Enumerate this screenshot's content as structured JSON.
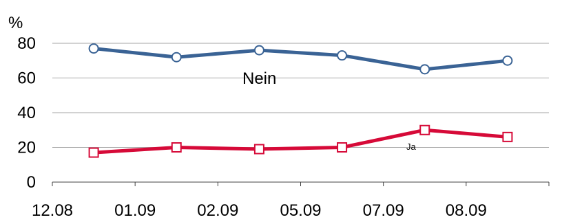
{
  "chart_data": {
    "type": "line",
    "unit_label": "%",
    "categories": [
      "12.08",
      "01.09",
      "02.09",
      "05.09",
      "07.09",
      "08.09"
    ],
    "series": [
      {
        "name": "Nein",
        "values": [
          77,
          72,
          76,
          73,
          65,
          70
        ],
        "color": "#3a6395",
        "marker": "circle"
      },
      {
        "name": "Ja",
        "values": [
          17,
          20,
          19,
          20,
          30,
          26
        ],
        "color": "#d60a38",
        "marker": "square"
      }
    ],
    "y_ticks": [
      "0",
      "20",
      "40",
      "60",
      "80"
    ],
    "ylim": [
      0,
      80
    ],
    "grid": true,
    "gridline_color": "#a6a6a6",
    "axis_color": "#404040",
    "legend": "none"
  }
}
